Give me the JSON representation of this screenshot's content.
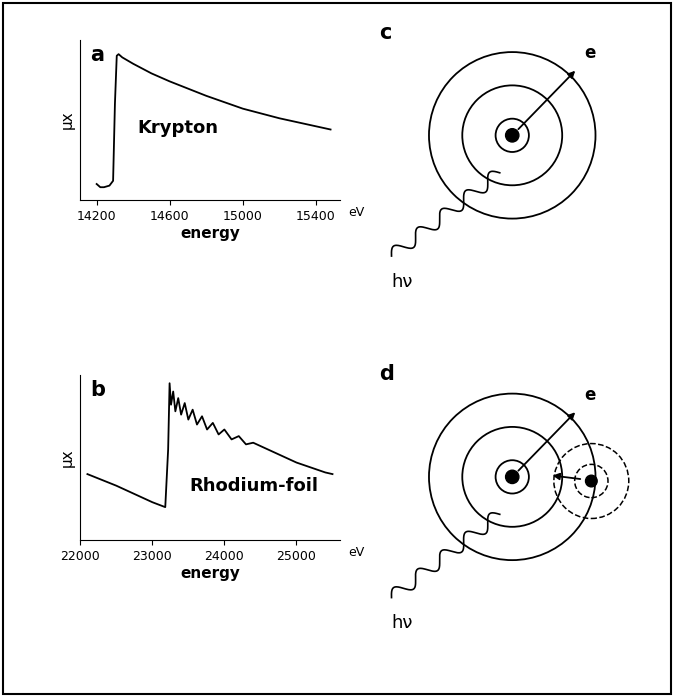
{
  "chart_data": [
    {
      "type": "line",
      "panel_label": "a",
      "label": "Krypton",
      "x_label": "energy",
      "y_label": "μx",
      "unit": "eV",
      "x": [
        14200,
        14220,
        14240,
        14270,
        14290,
        14300,
        14310,
        14320,
        14340,
        14400,
        14500,
        14600,
        14800,
        15000,
        15200,
        15400,
        15480
      ],
      "values": [
        0.1,
        0.08,
        0.08,
        0.09,
        0.12,
        0.6,
        0.9,
        0.91,
        0.89,
        0.85,
        0.79,
        0.74,
        0.65,
        0.57,
        0.51,
        0.46,
        0.44
      ],
      "xlim": [
        14110,
        15530
      ],
      "ylim": [
        0,
        1
      ],
      "xticks": [
        14200,
        14600,
        15000,
        15400
      ],
      "yticks": [],
      "tick_labels": "x",
      "color": "#000000"
    },
    {
      "type": "line",
      "panel_label": "b",
      "label": "Rhodium-foil",
      "x_label": "energy",
      "y_label": "μx",
      "unit": "eV",
      "x": [
        22100,
        22500,
        23000,
        23180,
        23220,
        23240,
        23260,
        23290,
        23320,
        23360,
        23400,
        23450,
        23500,
        23560,
        23620,
        23690,
        23760,
        23840,
        23920,
        24000,
        24100,
        24200,
        24300,
        24400,
        24600,
        24800,
        25000,
        25200,
        25400,
        25500
      ],
      "values": [
        0.4,
        0.33,
        0.23,
        0.2,
        0.55,
        0.95,
        0.82,
        0.9,
        0.78,
        0.86,
        0.76,
        0.83,
        0.73,
        0.79,
        0.7,
        0.75,
        0.67,
        0.71,
        0.64,
        0.67,
        0.61,
        0.63,
        0.58,
        0.59,
        0.55,
        0.51,
        0.47,
        0.44,
        0.41,
        0.4
      ],
      "xlim": [
        22000,
        25600
      ],
      "ylim": [
        0,
        1
      ],
      "xticks": [
        22000,
        23000,
        24000,
        25000
      ],
      "yticks": [],
      "tick_labels": "x",
      "color": "#000000"
    }
  ],
  "diagrams": [
    {
      "panel_label": "c",
      "photon_label": "hν",
      "electron_label": "e",
      "neighbor": false
    },
    {
      "panel_label": "d",
      "photon_label": "hν",
      "electron_label": "e",
      "neighbor": true
    }
  ]
}
